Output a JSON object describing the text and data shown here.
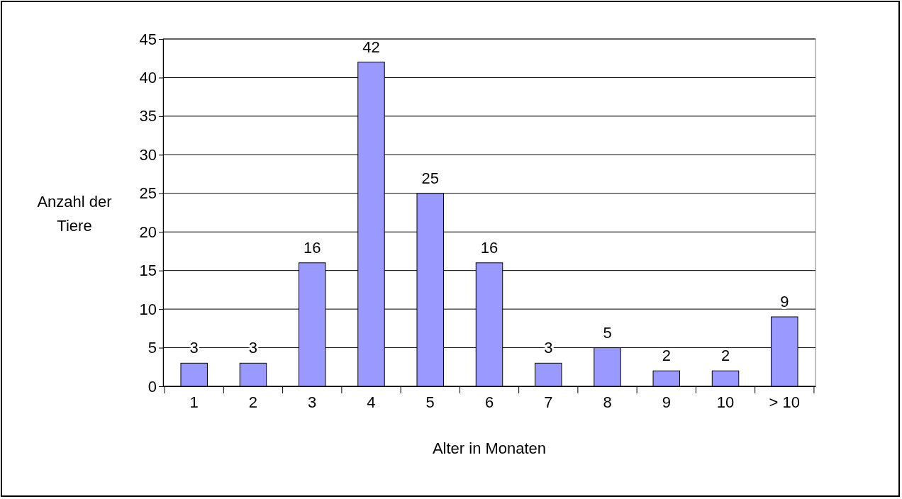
{
  "chart_data": {
    "type": "bar",
    "xlabel": "Alter in Monaten",
    "ylabel": "Anzahl der Tiere",
    "categories": [
      "1",
      "2",
      "3",
      "4",
      "5",
      "6",
      "7",
      "8",
      "9",
      "10",
      "> 10"
    ],
    "values": [
      3,
      3,
      16,
      42,
      25,
      16,
      3,
      5,
      2,
      2,
      9
    ],
    "color": "#9999ff",
    "ylim": [
      0,
      45
    ],
    "yticks": [
      0,
      5,
      10,
      15,
      20,
      25,
      30,
      35,
      40,
      45
    ],
    "grid": "y",
    "data_labels": true
  }
}
